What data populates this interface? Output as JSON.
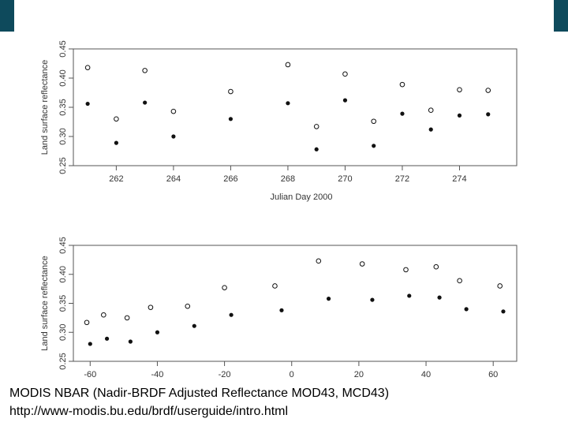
{
  "colors": {
    "accent": "#0e4a5c",
    "axis": "#555555",
    "marker": "#111111"
  },
  "caption": {
    "line1": "MODIS NBAR (Nadir-BRDF Adjusted Reflectance MOD43, MCD43)",
    "line2": "http://www-modis.bu.edu/brdf/userguide/intro.html"
  },
  "chart_data": [
    {
      "type": "scatter",
      "xlabel": "Julian Day 2000",
      "ylabel": "Land surface reflectance",
      "xlim": [
        260.5,
        276
      ],
      "ylim": [
        0.25,
        0.45
      ],
      "xticks": [
        262,
        264,
        266,
        268,
        270,
        272,
        274
      ],
      "yticks": [
        0.25,
        0.3,
        0.35,
        0.4,
        0.45
      ],
      "ytick_labels": [
        "0.25",
        "0.30",
        "0.35",
        "0.40",
        "0.45"
      ],
      "series": [
        {
          "marker": "open-circle",
          "x": [
            261,
            262,
            263,
            264,
            266,
            268,
            269,
            270,
            271,
            272,
            273,
            274,
            275
          ],
          "y": [
            0.418,
            0.33,
            0.413,
            0.343,
            0.377,
            0.423,
            0.317,
            0.407,
            0.326,
            0.389,
            0.345,
            0.38,
            0.379
          ]
        },
        {
          "marker": "filled-dot",
          "x": [
            261,
            262,
            263,
            264,
            266,
            268,
            269,
            270,
            271,
            272,
            273,
            274,
            275
          ],
          "y": [
            0.356,
            0.289,
            0.358,
            0.3,
            0.33,
            0.357,
            0.278,
            0.362,
            0.284,
            0.339,
            0.312,
            0.336,
            0.338
          ]
        }
      ]
    },
    {
      "type": "scatter",
      "xlabel": "",
      "ylabel": "Land surface reflectance",
      "xlim": [
        -65,
        67
      ],
      "ylim": [
        0.25,
        0.45
      ],
      "xticks": [
        -60,
        -40,
        -20,
        0,
        20,
        40,
        60
      ],
      "yticks": [
        0.25,
        0.3,
        0.35,
        0.4,
        0.45
      ],
      "ytick_labels": [
        "0.25",
        "0.30",
        "0.35",
        "0.40",
        "0.45"
      ],
      "series": [
        {
          "marker": "open-circle",
          "x": [
            -61,
            -56,
            -49,
            -42,
            -31,
            -20,
            -5,
            8,
            21,
            34,
            43,
            50,
            62
          ],
          "y": [
            0.317,
            0.33,
            0.325,
            0.343,
            0.345,
            0.377,
            0.38,
            0.423,
            0.418,
            0.408,
            0.413,
            0.389,
            0.38
          ]
        },
        {
          "marker": "filled-dot",
          "x": [
            -60,
            -55,
            -48,
            -40,
            -29,
            -18,
            -3,
            11,
            24,
            35,
            44,
            52,
            63
          ],
          "y": [
            0.28,
            0.289,
            0.284,
            0.3,
            0.311,
            0.33,
            0.338,
            0.358,
            0.356,
            0.363,
            0.36,
            0.34,
            0.336
          ]
        }
      ]
    }
  ]
}
